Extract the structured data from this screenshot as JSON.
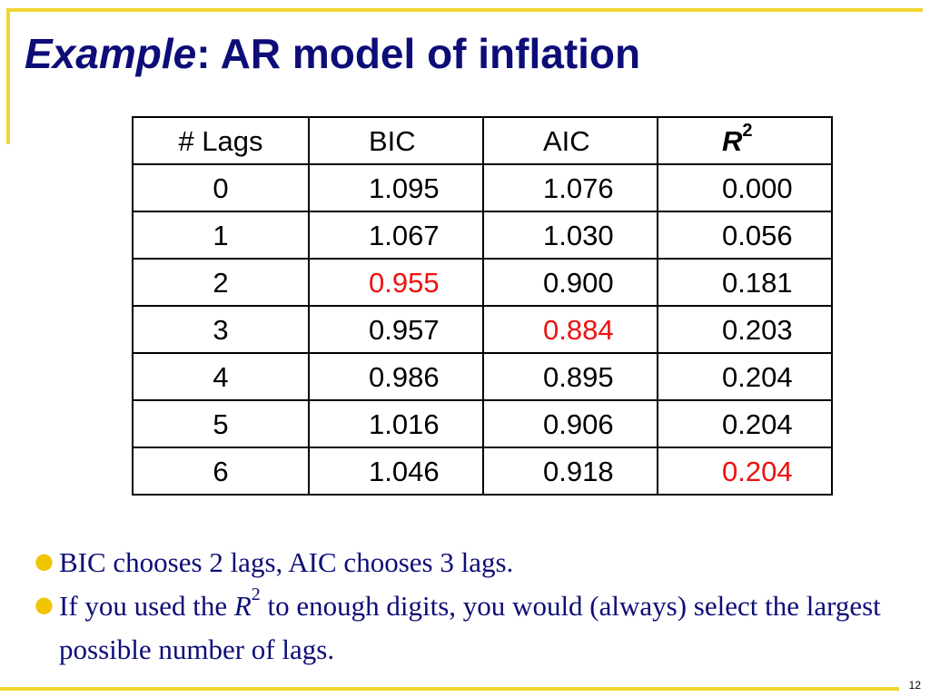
{
  "slide": {
    "title_italic": "Example",
    "title_rest": ": AR model of inflation",
    "page_number": "12"
  },
  "table": {
    "headers": [
      "# Lags",
      "BIC",
      "AIC",
      "R",
      "2"
    ],
    "rows": [
      [
        "0",
        "1.095",
        "1.076",
        "0.000"
      ],
      [
        "1",
        "1.067",
        "1.030",
        "0.056"
      ],
      [
        "2",
        "0.955",
        "0.900",
        "0.181"
      ],
      [
        "3",
        "0.957",
        "0.884",
        "0.203"
      ],
      [
        "4",
        "0.986",
        "0.895",
        "0.204"
      ],
      [
        "5",
        "1.016",
        "0.906",
        "0.204"
      ],
      [
        "6",
        "1.046",
        "0.918",
        "0.204"
      ]
    ],
    "highlight_color": "#ee1111"
  },
  "bullets": [
    {
      "text": "BIC chooses 2 lags, AIC chooses 3 lags."
    },
    {
      "pre": "If you used the ",
      "var": "R",
      "sup": "2",
      "post": " to enough digits, you would (always) select the largest possible number of lags."
    }
  ],
  "colors": {
    "title": "#0d0d78",
    "accent": "#f1d52e",
    "bullet_dot": "#f1c400"
  }
}
